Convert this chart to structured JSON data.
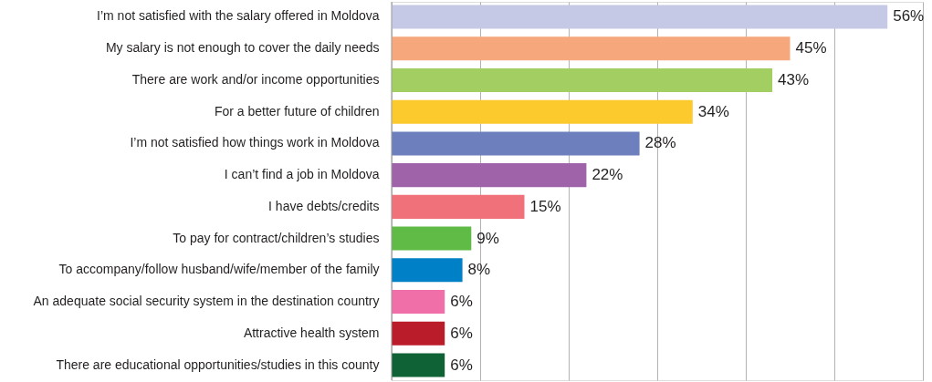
{
  "chart_data": {
    "type": "bar",
    "orientation": "horizontal",
    "categories": [
      "I’m not satisfied with the salary offered in Moldova",
      "My salary is not enough to cover the daily needs",
      "There are work and/or income opportunities",
      "For a better future of children",
      "I’m not satisfied how things work in Moldova",
      "I can’t find a job in Moldova",
      "I have debts/credits",
      "To pay for contract/children’s studies",
      "To accompany/follow husband/wife/member of the family",
      "An adequate social security system in the destination country",
      "Attractive health system",
      "There are educational opportunities/studies in this county"
    ],
    "values": [
      56,
      45,
      43,
      34,
      28,
      22,
      15,
      9,
      8,
      6,
      6,
      6
    ],
    "value_labels": [
      "56%",
      "45%",
      "43%",
      "34%",
      "28%",
      "22%",
      "15%",
      "9%",
      "8%",
      "6%",
      "6%",
      "6%"
    ],
    "colors": [
      "#c5c9e6",
      "#f6a77c",
      "#a3cf62",
      "#fdca2e",
      "#6e7fbe",
      "#9e63a8",
      "#f1717a",
      "#5fba46",
      "#0080c6",
      "#f06fa9",
      "#bb1c2a",
      "#0f6236"
    ],
    "xlim": [
      0,
      60
    ],
    "xticks": [
      {
        "value": 0,
        "label": null
      },
      {
        "value": 10,
        "label": null
      },
      {
        "value": 20,
        "label": null
      },
      {
        "value": 30,
        "label": null
      },
      {
        "value": 40,
        "label": null
      },
      {
        "value": 50,
        "label": null
      },
      {
        "value": 60,
        "label": null
      }
    ],
    "grid": "x",
    "tick_labels": "y"
  }
}
